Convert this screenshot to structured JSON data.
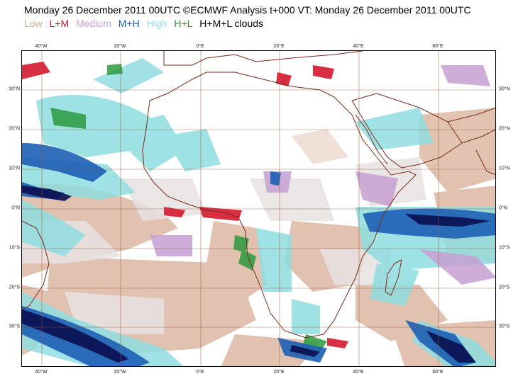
{
  "title": "Monday 26 December 2011 00UTC ©ECMWF Analysis t+000 VT: Monday 26 December 2011 00UTC",
  "legend": [
    {
      "label": "Low",
      "color": "#d8ae96"
    },
    {
      "label": "L+M",
      "color": "#d4182e"
    },
    {
      "label": "Medium",
      "color": "#c6a0d2"
    },
    {
      "label": "M+H",
      "color": "#1d5fb4"
    },
    {
      "label": "High",
      "color": "#8fdde0"
    },
    {
      "label": "H+L",
      "color": "#2c9a3e"
    },
    {
      "label": "H+M+L clouds",
      "color": "#000000"
    }
  ],
  "map": {
    "lon_labels": [
      "40°W",
      "20°W",
      "0°E",
      "20°E",
      "40°E",
      "60°E"
    ],
    "lat_labels": [
      "30°N",
      "20°N",
      "10°N",
      "0°N",
      "10°S",
      "20°S",
      "30°S"
    ],
    "coast_color": "#7a2a1a",
    "grid_color": "#a0522d"
  }
}
